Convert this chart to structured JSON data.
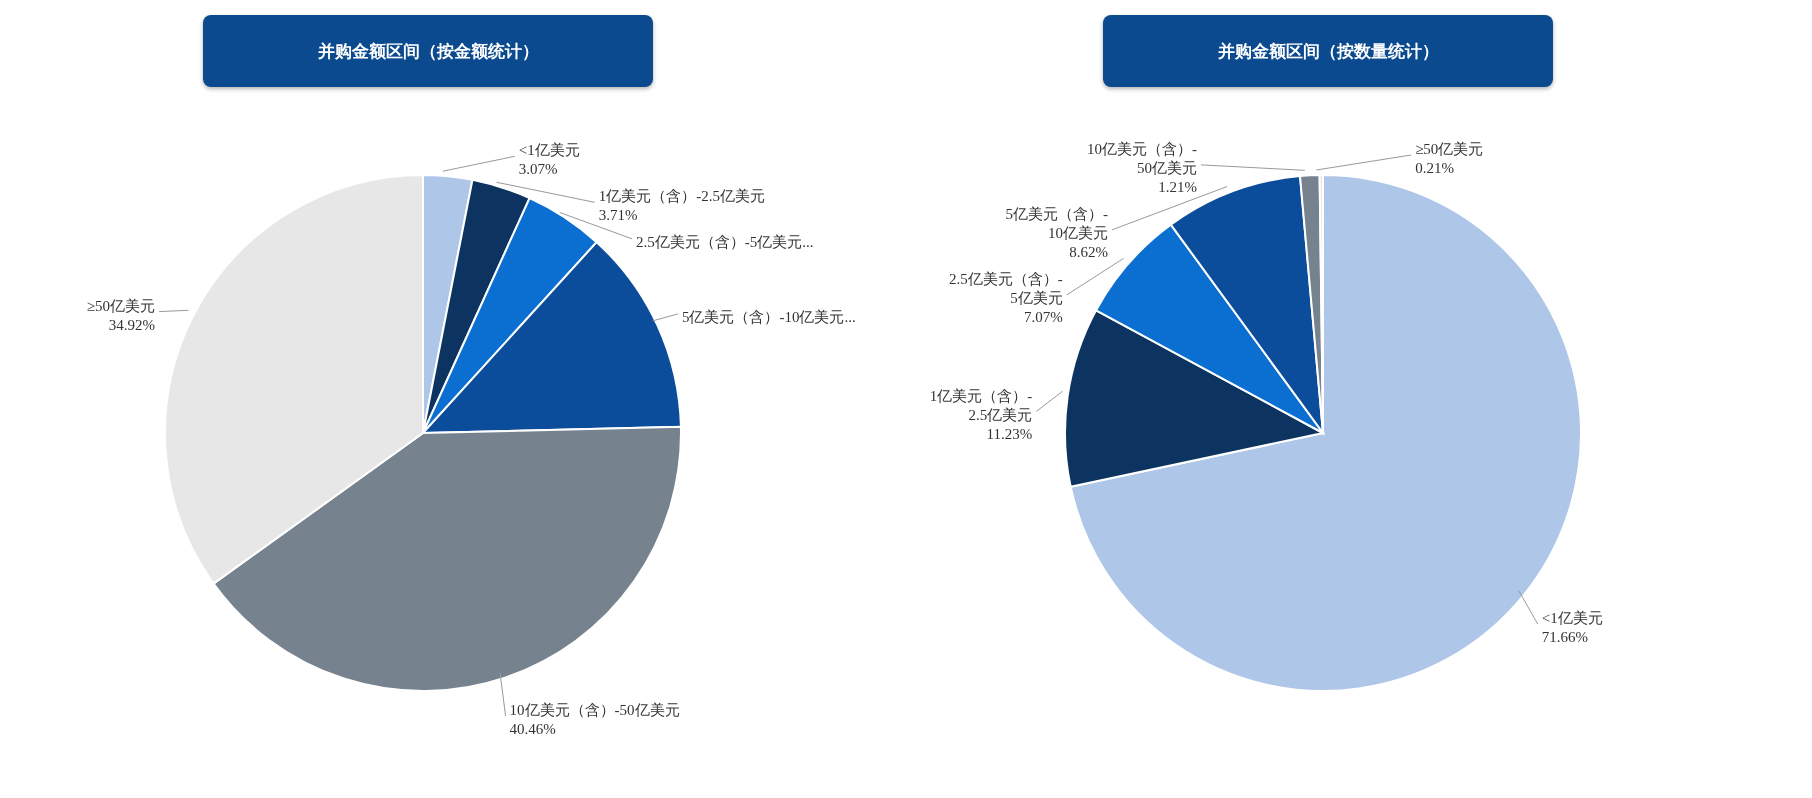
{
  "chart_data": [
    {
      "type": "pie",
      "title": "并购金额区间（按金额统计）",
      "categories": [
        "<1亿美元",
        "1亿美元（含）-2.5亿美元",
        "2.5亿美元（含）-5亿美元...",
        "5亿美元（含）-10亿美元...",
        "10亿美元（含）-50亿美元",
        "≥50亿美元"
      ],
      "values": [
        3.07,
        3.71,
        4.97,
        12.87,
        40.46,
        34.92
      ],
      "colors": [
        "#aec6e8",
        "#0d3461",
        "#0a6fd0",
        "#0b4d9a",
        "#76838f",
        "#e7e7e7"
      ],
      "value_labels": [
        "3.07%",
        "3.71%",
        null,
        null,
        "40.46%",
        "34.92%"
      ]
    },
    {
      "type": "pie",
      "title": "并购金额区间（按数量统计）",
      "categories": [
        "<1亿美元",
        "1亿美元（含）-2.5亿美元",
        "2.5亿美元（含）-5亿美元",
        "5亿美元（含）-10亿美元",
        "10亿美元（含）-50亿美元",
        "≥50亿美元"
      ],
      "values": [
        71.66,
        11.23,
        7.07,
        8.62,
        1.21,
        0.21
      ],
      "colors": [
        "#aec6e8",
        "#0d3461",
        "#0a6fd0",
        "#0b4d9a",
        "#76838f",
        "#e7e7e7"
      ],
      "value_labels": [
        "71.66%",
        "11.23%",
        "7.07%",
        "8.62%",
        "1.21%",
        "0.21%"
      ]
    }
  ]
}
